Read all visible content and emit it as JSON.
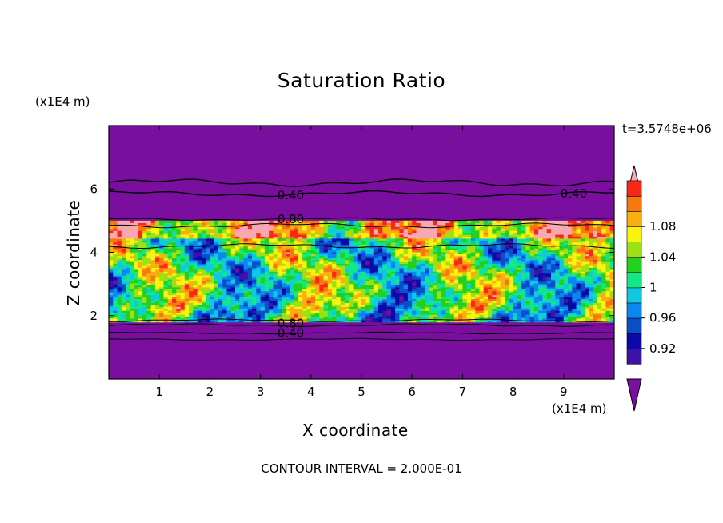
{
  "chart_data": {
    "type": "heatmap",
    "title": "Saturation Ratio",
    "xlabel": "X coordinate",
    "ylabel": "Z coordinate",
    "x_unit": "(x1E4 m)",
    "y_unit": "(x1E4 m)",
    "timestamp": "t=3.5748e+06",
    "caption": "CONTOUR INTERVAL = 2.000E-01",
    "xlim": [
      0,
      10
    ],
    "ylim": [
      0,
      8
    ],
    "x_ticks": [
      "1",
      "2",
      "3",
      "4",
      "5",
      "6",
      "7",
      "8",
      "9"
    ],
    "y_ticks": [
      "2",
      "4",
      "6"
    ],
    "colorbar": {
      "labels": [
        "0.92",
        "0.96",
        "1",
        "1.04",
        "1.08"
      ],
      "colors": [
        "#7a0e9e",
        "#3c12a8",
        "#0a0aa8",
        "#0a4ec8",
        "#0c86f0",
        "#10c8e0",
        "#12e88a",
        "#22d022",
        "#9ee016",
        "#f8f410",
        "#f8b010",
        "#f87810",
        "#f82818",
        "#f8a8b0"
      ],
      "extend": "both"
    },
    "contour_labels": [
      {
        "text": "0.40",
        "x": 3.6,
        "z": 5.8
      },
      {
        "text": "0.40",
        "x": 9.2,
        "z": 5.85
      },
      {
        "text": "0.80",
        "x": 3.6,
        "z": 5.05
      },
      {
        "text": "0.80",
        "x": 3.6,
        "z": 1.75
      },
      {
        "text": "0.40",
        "x": 3.6,
        "z": 1.45
      }
    ],
    "contour_levels": [
      0.4,
      0.6,
      0.8,
      1.0
    ],
    "background_value": 0.4,
    "field_description_range_z": [
      1.8,
      5.0
    ]
  }
}
